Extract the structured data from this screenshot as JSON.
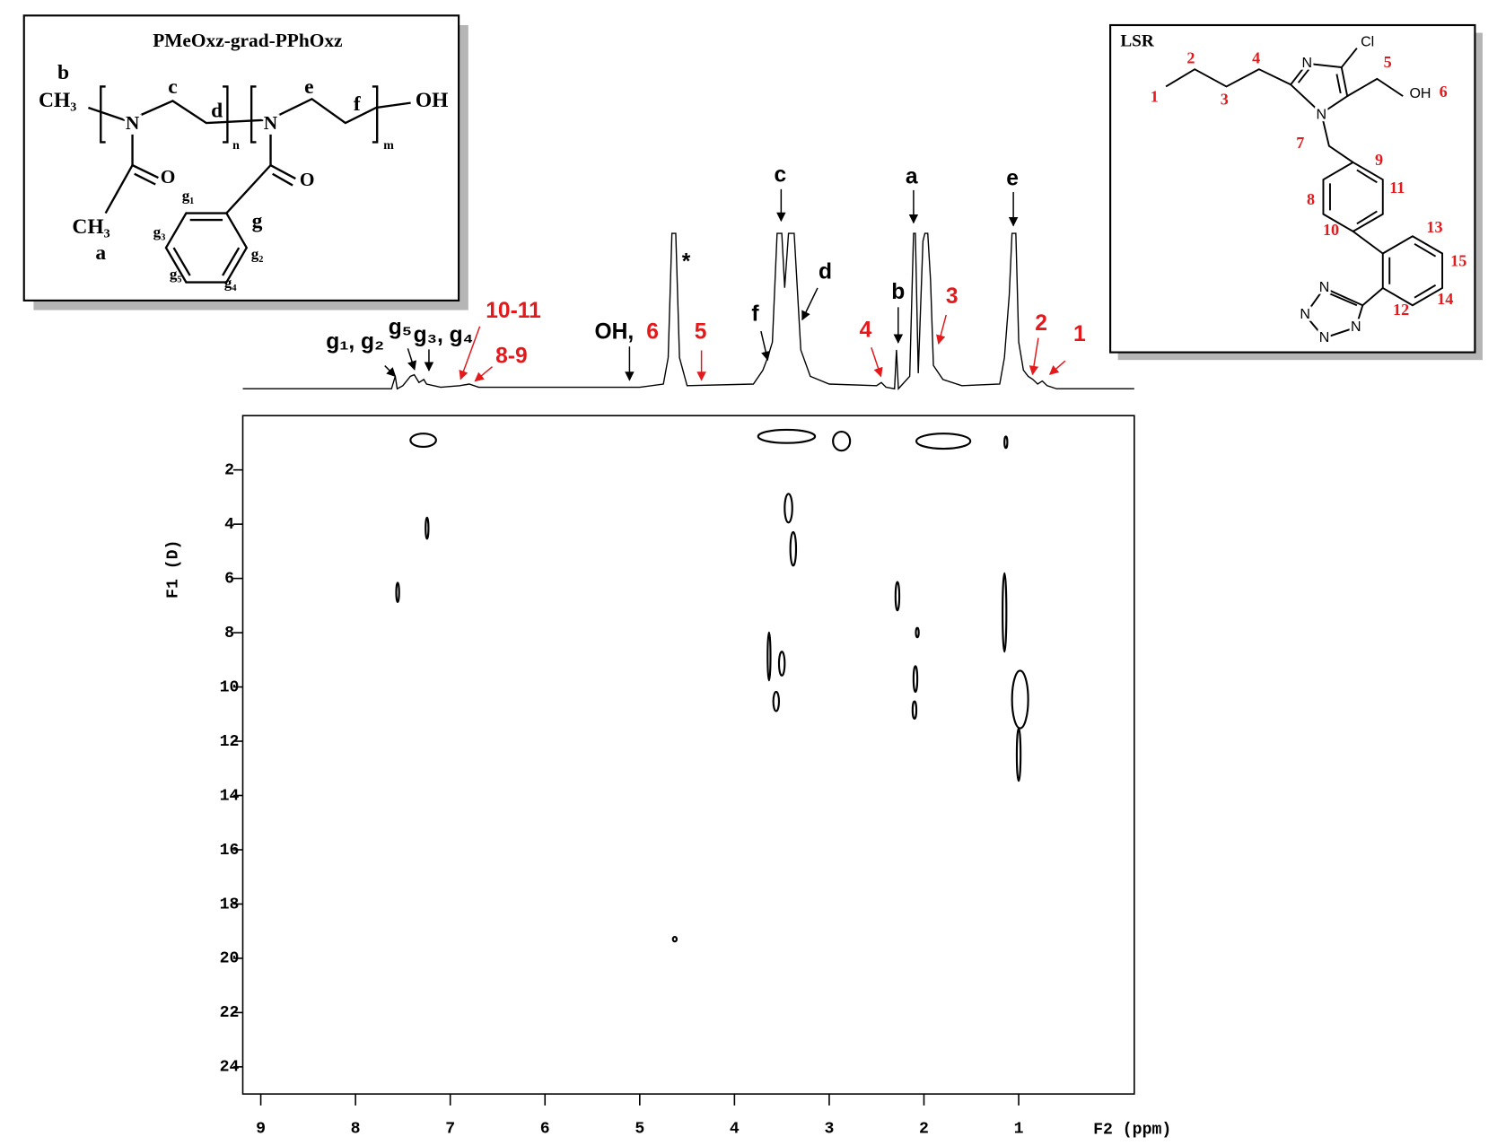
{
  "chart_data": {
    "type": "contour",
    "xlabel": "F2 (ppm)",
    "ylabel": "F1 (D)",
    "xlim": [
      9.19,
      -0.22
    ],
    "ylim": [
      0,
      25
    ],
    "xticks": [
      9,
      8,
      7,
      6,
      5,
      4,
      3,
      2,
      1
    ],
    "yticks": [
      2,
      4,
      6,
      8,
      10,
      12,
      14,
      16,
      18,
      20,
      22,
      24
    ],
    "color": "#000000",
    "contours": [
      {
        "x1": 7.42,
        "x2": 7.15,
        "y1": 0.66,
        "y2": 1.15
      },
      {
        "x1": 3.75,
        "x2": 3.15,
        "y1": 0.52,
        "y2": 1.01
      },
      {
        "x1": 2.96,
        "x2": 2.78,
        "y1": 0.59,
        "y2": 1.29
      },
      {
        "x1": 2.08,
        "x2": 1.51,
        "y1": 0.66,
        "y2": 1.22
      },
      {
        "x1": 1.15,
        "x2": 1.12,
        "y1": 0.77,
        "y2": 1.19
      },
      {
        "x1": 7.26,
        "x2": 7.23,
        "y1": 3.76,
        "y2": 4.54
      },
      {
        "x1": 3.47,
        "x2": 3.39,
        "y1": 2.88,
        "y2": 3.94
      },
      {
        "x1": 3.41,
        "x2": 3.35,
        "y1": 4.29,
        "y2": 5.53
      },
      {
        "x1": 7.57,
        "x2": 7.54,
        "y1": 6.16,
        "y2": 6.87
      },
      {
        "x1": 2.3,
        "x2": 2.26,
        "y1": 6.13,
        "y2": 7.18
      },
      {
        "x1": 1.17,
        "x2": 1.13,
        "y1": 5.81,
        "y2": 8.7
      },
      {
        "x1": 2.08,
        "x2": 2.06,
        "y1": 7.82,
        "y2": 8.17
      },
      {
        "x1": 3.65,
        "x2": 3.62,
        "y1": 7.99,
        "y2": 9.76
      },
      {
        "x1": 3.53,
        "x2": 3.47,
        "y1": 8.7,
        "y2": 9.58
      },
      {
        "x1": 2.11,
        "x2": 2.07,
        "y1": 9.23,
        "y2": 10.18
      },
      {
        "x1": 2.12,
        "x2": 2.08,
        "y1": 10.53,
        "y2": 11.17
      },
      {
        "x1": 3.59,
        "x2": 3.53,
        "y1": 10.18,
        "y2": 10.89
      },
      {
        "x1": 1.07,
        "x2": 0.9,
        "y1": 9.4,
        "y2": 11.52
      },
      {
        "x1": 1.02,
        "x2": 0.98,
        "y1": 11.52,
        "y2": 13.46
      },
      {
        "x1": 4.65,
        "x2": 4.61,
        "y1": 19.21,
        "y2": 19.38
      }
    ],
    "spectrum": {
      "x": [
        9.19,
        7.62,
        7.58,
        7.56,
        7.5,
        7.42,
        7.38,
        7.33,
        7.28,
        7.25,
        7.1,
        6.9,
        6.8,
        6.7,
        5.0,
        4.75,
        4.7,
        4.66,
        4.62,
        4.58,
        4.5,
        3.8,
        3.7,
        3.65,
        3.6,
        3.55,
        3.5,
        3.47,
        3.43,
        3.37,
        3.3,
        3.2,
        3.0,
        2.5,
        2.45,
        2.4,
        2.31,
        2.29,
        2.27,
        2.15,
        2.11,
        2.09,
        2.06,
        2.01,
        1.99,
        1.96,
        1.93,
        1.9,
        1.8,
        1.6,
        1.2,
        1.15,
        1.1,
        1.07,
        1.03,
        1.0,
        0.95,
        0.9,
        0.85,
        0.8,
        0.75,
        0.7,
        0.6,
        -0.22
      ],
      "values": [
        0,
        0,
        8,
        0,
        2,
        8,
        9,
        4,
        6,
        3,
        1,
        2,
        3,
        1,
        1,
        3,
        20,
        100,
        100,
        20,
        2,
        3,
        12,
        20,
        30,
        100,
        100,
        65,
        100,
        100,
        25,
        8,
        3,
        2,
        4,
        1,
        0,
        25,
        0,
        8,
        100,
        100,
        10,
        95,
        100,
        100,
        70,
        15,
        6,
        2,
        3,
        20,
        60,
        100,
        100,
        30,
        12,
        8,
        6,
        3,
        5,
        2,
        0,
        0
      ]
    },
    "annotations": [
      {
        "text": "g₁, g₂",
        "color": "#000000"
      },
      {
        "text": "g₅",
        "color": "#000000"
      },
      {
        "text": "g₃, g₄",
        "color": "#000000"
      },
      {
        "text": "10-11",
        "color": "#e3191c"
      },
      {
        "text": "8-9",
        "color": "#e3191c"
      },
      {
        "text": "OH,",
        "color": "#000000"
      },
      {
        "text": "6",
        "color": "#e3191c"
      },
      {
        "text": "5",
        "color": "#e3191c"
      },
      {
        "text": "*",
        "color": "#000000"
      },
      {
        "text": "f",
        "color": "#000000"
      },
      {
        "text": "c",
        "color": "#000000"
      },
      {
        "text": "d",
        "color": "#000000"
      },
      {
        "text": "a",
        "color": "#000000"
      },
      {
        "text": "b",
        "color": "#000000"
      },
      {
        "text": "e",
        "color": "#000000"
      },
      {
        "text": "4",
        "color": "#e3191c"
      },
      {
        "text": "3",
        "color": "#e3191c"
      },
      {
        "text": "2",
        "color": "#e3191c"
      },
      {
        "text": "1",
        "color": "#e3191c"
      }
    ]
  },
  "structures": {
    "polymer": {
      "title": "PMeOxz-grad-PPhOxz",
      "labels": [
        "b",
        "CH₃",
        "c",
        "d",
        "n",
        "e",
        "f",
        "m",
        "OH",
        "N",
        "N",
        "O",
        "O",
        "CH₃",
        "a",
        "g",
        "g₁",
        "g₂",
        "g₃",
        "g₄",
        "g₅"
      ]
    },
    "drug": {
      "title": "LSR",
      "labels": [
        "1",
        "2",
        "3",
        "4",
        "N",
        "Cl",
        "5",
        "OH",
        "6",
        "N",
        "7",
        "9",
        "11",
        "8",
        "10",
        "13",
        "15",
        "14",
        "12",
        "N",
        "N",
        "N",
        "N"
      ]
    }
  }
}
